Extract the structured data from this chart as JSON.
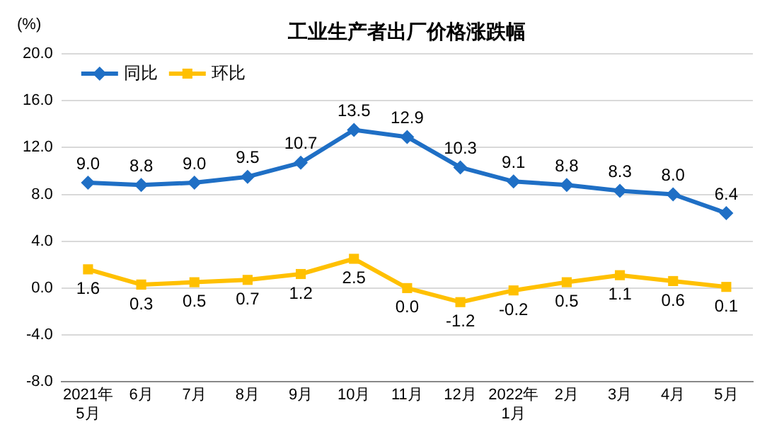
{
  "chart_data": {
    "type": "line",
    "title": "工业生产者出厂价格涨跌幅",
    "ylabel": "(%)",
    "categories": [
      "2021年\n5月",
      "6月",
      "7月",
      "8月",
      "9月",
      "10月",
      "11月",
      "12月",
      "2022年\n1月",
      "2月",
      "3月",
      "4月",
      "5月"
    ],
    "series": [
      {
        "name": "同比",
        "color": "#1f6fc5",
        "marker": "diamond",
        "values": [
          9.0,
          8.8,
          9.0,
          9.5,
          10.7,
          13.5,
          12.9,
          10.3,
          9.1,
          8.8,
          8.3,
          8.0,
          6.4
        ],
        "value_labels": [
          "9.0",
          "8.8",
          "9.0",
          "9.5",
          "10.7",
          "13.5",
          "12.9",
          "10.3",
          "9.1",
          "8.8",
          "8.3",
          "8.0",
          "6.4"
        ]
      },
      {
        "name": "环比",
        "color": "#ffc000",
        "marker": "square",
        "values": [
          1.6,
          0.3,
          0.5,
          0.7,
          1.2,
          2.5,
          0.0,
          -1.2,
          -0.2,
          0.5,
          1.1,
          0.6,
          0.1
        ],
        "value_labels": [
          "1.6",
          "0.3",
          "0.5",
          "0.7",
          "1.2",
          "2.5",
          "0.0",
          "-1.2",
          "-0.2",
          "0.5",
          "1.1",
          "0.6",
          "0.1"
        ]
      }
    ],
    "ylim": [
      -8,
      20
    ],
    "yticks": [
      {
        "value": -8,
        "label": "-8.0"
      },
      {
        "value": -4,
        "label": "-4.0"
      },
      {
        "value": 0,
        "label": "0.0"
      },
      {
        "value": 4,
        "label": "4.0"
      },
      {
        "value": 8,
        "label": "8.0"
      },
      {
        "value": 12,
        "label": "12.0"
      },
      {
        "value": 16,
        "label": "16.0"
      },
      {
        "value": 20,
        "label": "20.0"
      }
    ],
    "grid": "y",
    "legend": "top left",
    "line_style": "solid"
  }
}
